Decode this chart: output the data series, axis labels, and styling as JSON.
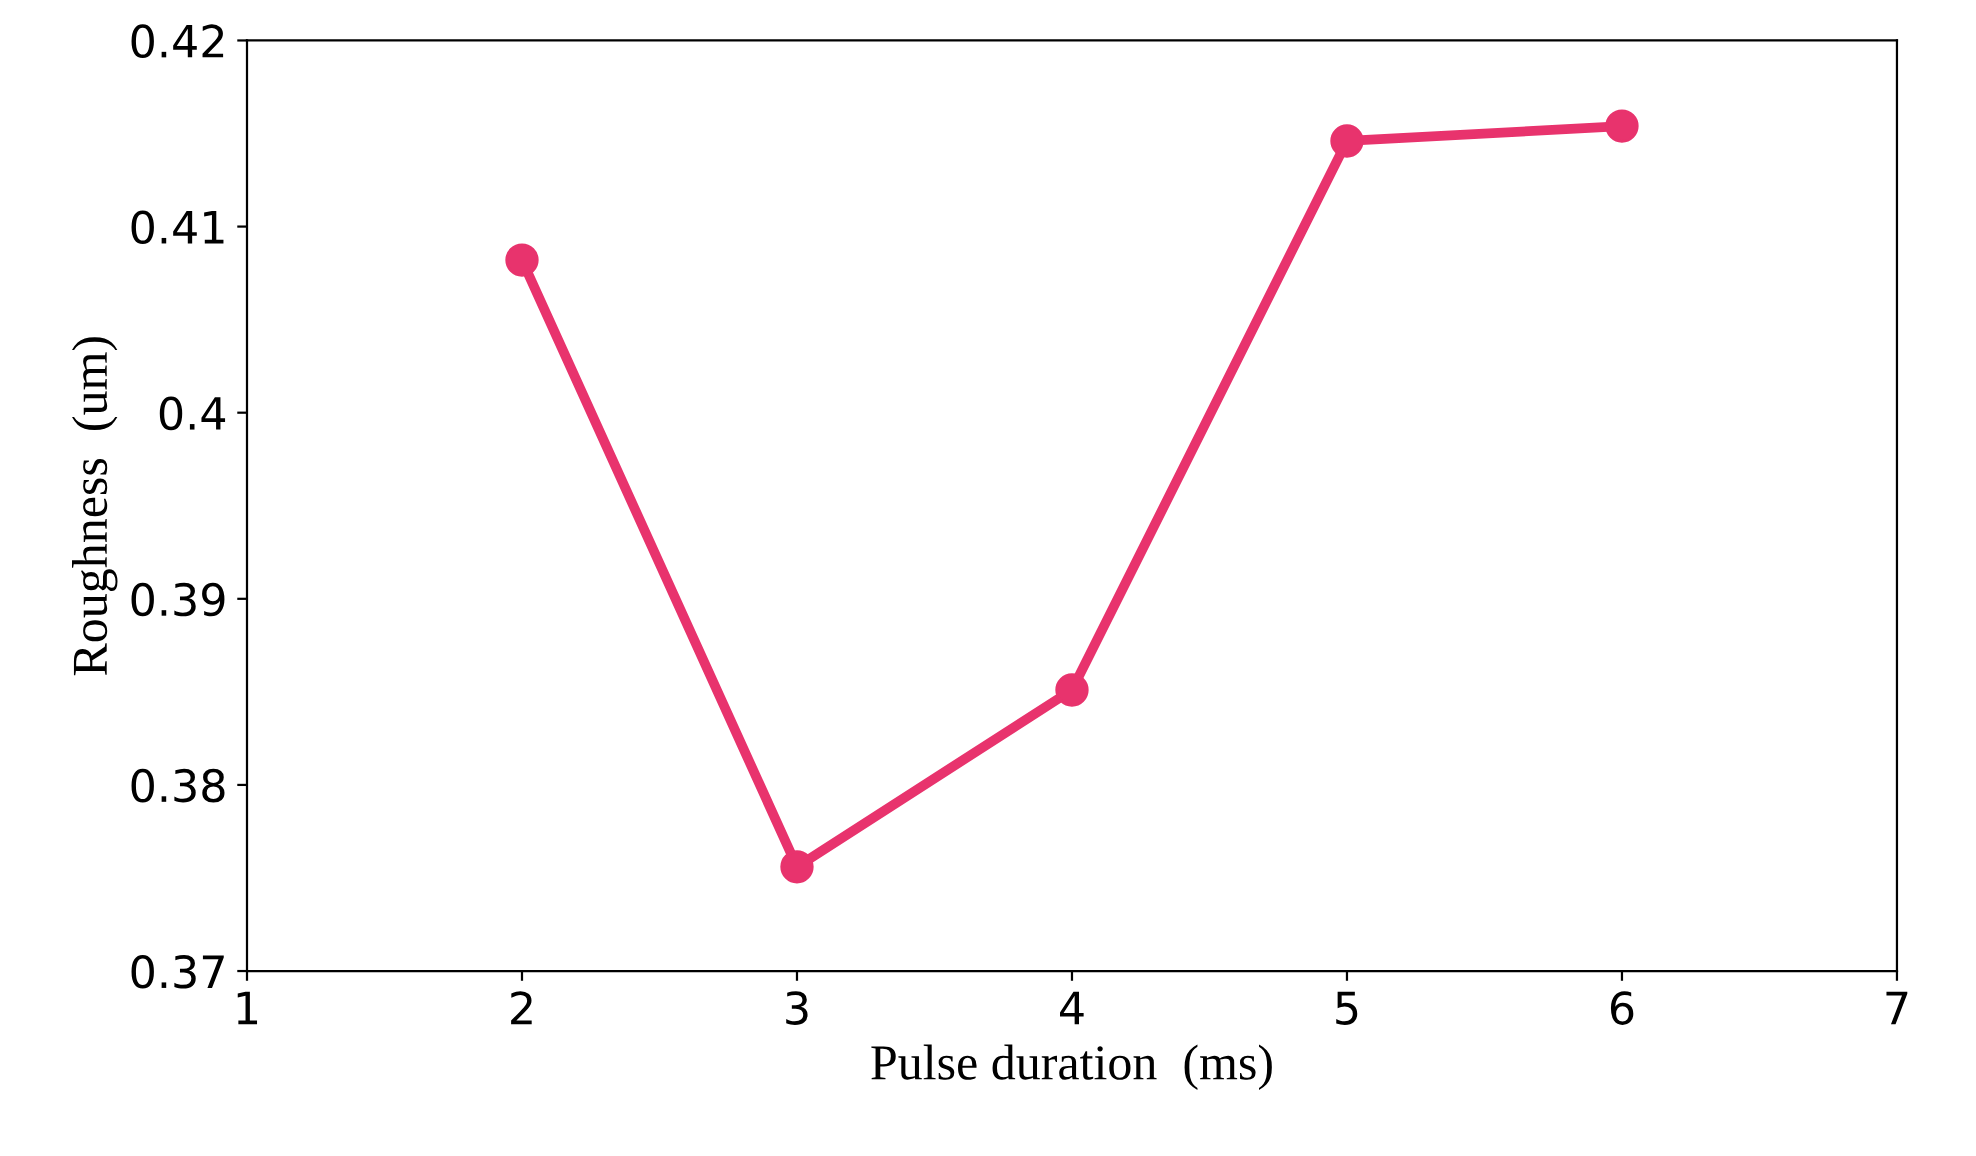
{
  "chart_data": {
    "type": "line",
    "xlabel": "Pulse duration  (ms)",
    "ylabel": "Roughness  (um)",
    "x": [
      2,
      3,
      4,
      5,
      6
    ],
    "series": [
      {
        "color": "#e8336d",
        "values": [
          0.4082,
          0.3756,
          0.3851,
          0.4146,
          0.4154
        ]
      }
    ],
    "xlim": [
      1,
      7
    ],
    "xticks": [
      1,
      2,
      3,
      4,
      5,
      6,
      7
    ],
    "ylim": [
      0.37,
      0.42
    ],
    "yticks": [
      0.37,
      0.38,
      0.39,
      0.4,
      0.41,
      0.42
    ],
    "marker": "circle",
    "line_style": "solid",
    "grid": false
  }
}
